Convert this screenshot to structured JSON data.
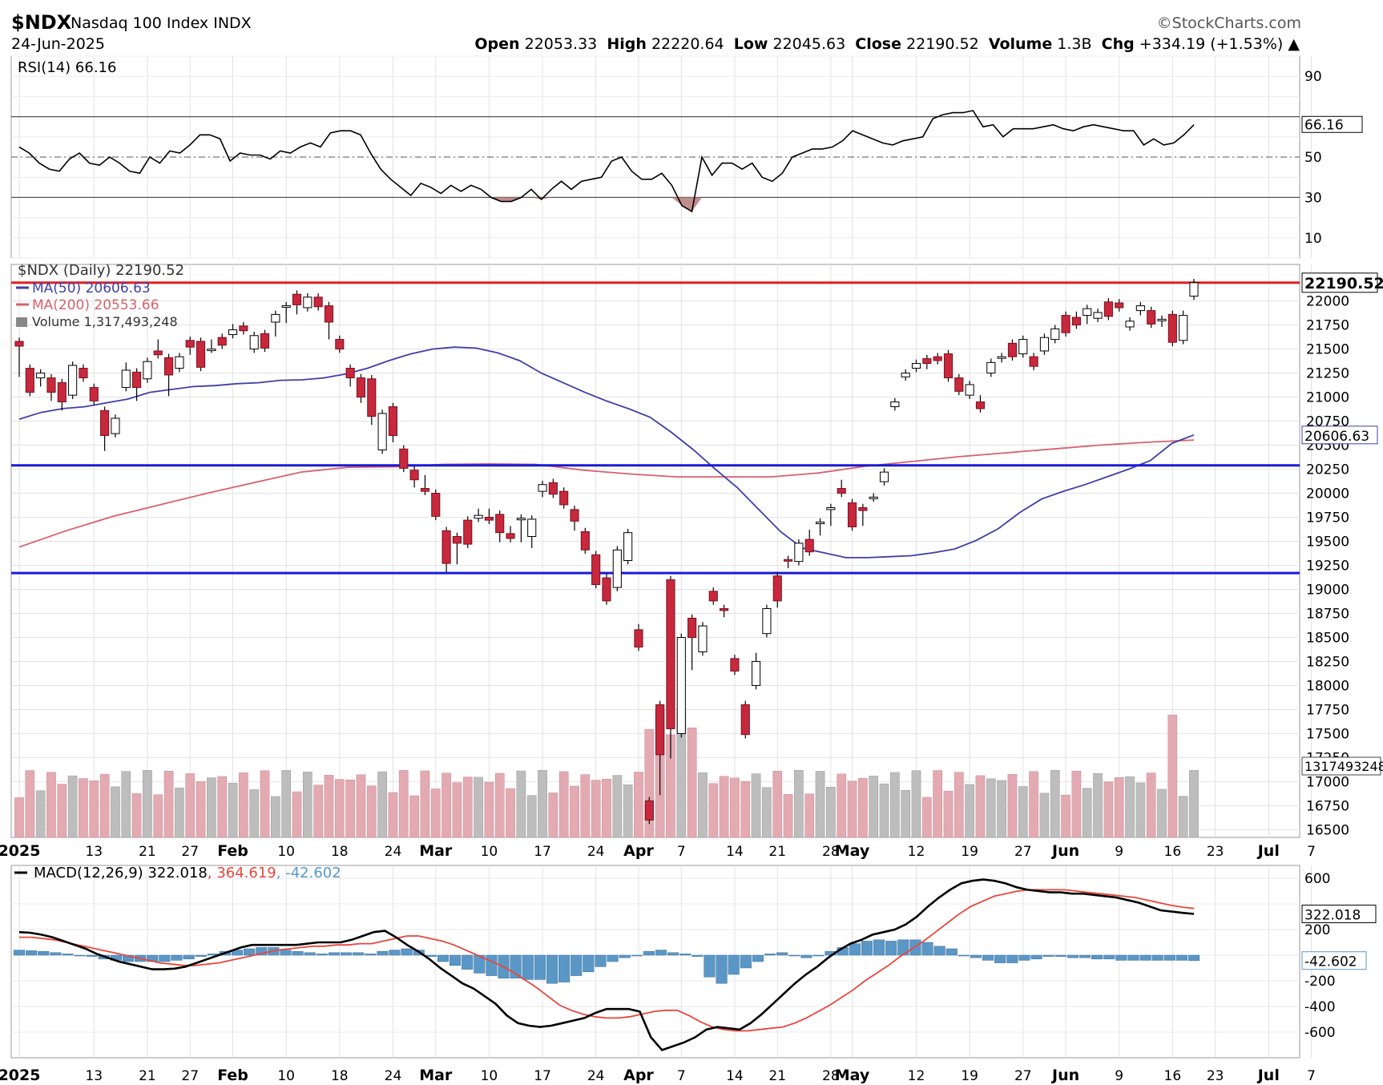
{
  "header": {
    "symbol": "$NDX",
    "name": "Nasdaq 100 Index",
    "exchange": "INDX",
    "date": "24-Jun-2025",
    "brand": "©StockCharts.com",
    "open_label": "Open",
    "open": "22053.33",
    "high_label": "High",
    "high": "22220.64",
    "low_label": "Low",
    "low": "22045.63",
    "close_label": "Close",
    "close": "22190.52",
    "volume_label": "Volume",
    "volume": "1.3B",
    "chg_label": "Chg",
    "chg": "+334.19 (+1.53%)"
  },
  "colors": {
    "up": "#ffffff",
    "down": "#c8283c",
    "ma50": "#3f3fa8",
    "ma200": "#d9616a",
    "rsi": "#000000",
    "macd": "#000000",
    "signal": "#e8463c",
    "hist": "#5a97c7",
    "hline_red": "#e02020",
    "hline_blue": "#1a1ad6",
    "vol_up": "#bdbdbd",
    "vol_down": "#e3aab2"
  },
  "chart_data": {
    "type": "candlestick",
    "x_ticks": [
      "2025",
      "13",
      "21",
      "27",
      "Feb",
      "10",
      "18",
      "24",
      "Mar",
      "10",
      "17",
      "24",
      "Apr",
      "7",
      "14",
      "21",
      "28",
      "May",
      "12",
      "19",
      "27",
      "Jun",
      "9",
      "16",
      "23",
      "Jul",
      "7"
    ],
    "price_panel": {
      "legend": [
        "$NDX (Daily) 22190.52",
        "MA(50) 20606.63",
        "MA(200) 20553.66",
        "Volume 1,317,493,248"
      ],
      "ylim": [
        16420,
        22380
      ],
      "y_ticks": [
        16500,
        16750,
        17000,
        17250,
        17500,
        17750,
        18000,
        18250,
        18500,
        18750,
        19000,
        19250,
        19500,
        19750,
        20000,
        20250,
        20500,
        20750,
        21000,
        21250,
        21500,
        21750,
        22000
      ],
      "last_price_label": "22190.52",
      "ma50_label": "20606.63",
      "volume_label": "1317493248",
      "horizontal_lines": [
        22190,
        20290,
        19170
      ],
      "candles": [
        [
          21580,
          21530,
          21250
        ],
        [
          21300,
          21050,
          21100
        ],
        [
          21200,
          21250,
          21150
        ],
        [
          21200,
          21050,
          21000
        ],
        [
          21150,
          20950,
          20900
        ],
        [
          21020,
          21330,
          21300
        ],
        [
          21300,
          21200,
          21270
        ],
        [
          21100,
          20960,
          20970
        ],
        [
          20860,
          20600,
          20480
        ],
        [
          20620,
          20780,
          20700
        ],
        [
          21100,
          21280,
          21320
        ],
        [
          21260,
          21100,
          21000
        ],
        [
          21190,
          21370,
          21350
        ],
        [
          21480,
          21440,
          21560
        ],
        [
          21410,
          21230,
          21050
        ],
        [
          21300,
          21420,
          21400
        ],
        [
          21590,
          21520,
          21480
        ],
        [
          21580,
          21310,
          21320
        ],
        [
          21500,
          21500,
          21560
        ],
        [
          21620,
          21540,
          21620
        ],
        [
          21650,
          21700,
          21720
        ],
        [
          21740,
          21690,
          21700
        ],
        [
          21500,
          21640,
          21520
        ],
        [
          21660,
          21510,
          21650
        ],
        [
          21780,
          21860,
          21670
        ],
        [
          21950,
          21950,
          21810
        ],
        [
          22070,
          21960,
          21900
        ],
        [
          21930,
          22040,
          21940
        ],
        [
          22040,
          21940,
          21980
        ],
        [
          21950,
          21780,
          21640
        ],
        [
          21600,
          21500,
          21580
        ],
        [
          21300,
          21200,
          21150
        ],
        [
          21200,
          21000,
          20980
        ],
        [
          21190,
          20800,
          20750
        ],
        [
          20450,
          20830,
          20830
        ],
        [
          20900,
          20600,
          20570
        ],
        [
          20460,
          20260,
          20280
        ],
        [
          20240,
          20140,
          20100
        ],
        [
          20050,
          20020,
          20150
        ],
        [
          20000,
          19760,
          19840
        ],
        [
          19610,
          19270,
          19220
        ],
        [
          19550,
          19480,
          19300
        ],
        [
          19720,
          19470,
          19510
        ],
        [
          19740,
          19770,
          19800
        ],
        [
          19750,
          19720,
          19800
        ],
        [
          19780,
          19590,
          19530
        ],
        [
          19580,
          19530,
          19620
        ],
        [
          19740,
          19740,
          19530
        ],
        [
          19550,
          19730,
          19470
        ],
        [
          20020,
          20090,
          20000
        ],
        [
          20110,
          19990,
          20100
        ],
        [
          20020,
          19880,
          19920
        ],
        [
          19830,
          19710,
          19650
        ],
        [
          19600,
          19410,
          19570
        ],
        [
          19360,
          19050,
          19080
        ],
        [
          19120,
          18880,
          19000
        ],
        [
          19020,
          19410,
          19300
        ],
        [
          19300,
          19590,
          19350
        ],
        [
          18580,
          18400,
          18600
        ],
        [
          16800,
          16600,
          16700
        ],
        [
          17800,
          17280,
          16900
        ],
        [
          19100,
          17550,
          17280
        ],
        [
          17500,
          18500,
          17800
        ],
        [
          18700,
          18500,
          18200
        ],
        [
          18350,
          18620,
          18500
        ],
        [
          18980,
          18880,
          18960
        ],
        [
          18800,
          18780,
          18750
        ],
        [
          18280,
          18150,
          18200
        ],
        [
          17800,
          17490,
          17600
        ],
        [
          18000,
          18250,
          18300
        ],
        [
          18540,
          18800,
          18600
        ],
        [
          19140,
          18880,
          18850
        ],
        [
          19310,
          19300,
          19260
        ],
        [
          19290,
          19480,
          19450
        ],
        [
          19520,
          19390,
          19580
        ],
        [
          19700,
          19700,
          19600
        ],
        [
          19830,
          19850,
          19700
        ],
        [
          20050,
          20000,
          20100
        ],
        [
          19900,
          19650,
          19800
        ],
        [
          19850,
          19820,
          19700
        ],
        [
          19960,
          19960,
          19950
        ],
        [
          20120,
          20220,
          20190
        ],
        [
          20900,
          20950,
          20950
        ],
        [
          21210,
          21250,
          21250
        ],
        [
          21300,
          21350,
          21300
        ],
        [
          21400,
          21350,
          21330
        ],
        [
          21420,
          21380,
          21400
        ],
        [
          21450,
          21200,
          21250
        ],
        [
          21200,
          21060,
          21060
        ],
        [
          21020,
          21130,
          21080
        ],
        [
          20950,
          20880,
          20980
        ],
        [
          21250,
          21360,
          21330
        ],
        [
          21420,
          21420,
          21400
        ],
        [
          21560,
          21420,
          21450
        ],
        [
          21450,
          21600,
          21550
        ],
        [
          21420,
          21320,
          21420
        ],
        [
          21480,
          21620,
          21560
        ],
        [
          21600,
          21710,
          21680
        ],
        [
          21850,
          21670,
          21770
        ],
        [
          21830,
          21750,
          21850
        ],
        [
          21850,
          21920,
          21800
        ],
        [
          21820,
          21880,
          21870
        ],
        [
          21990,
          21840,
          21960
        ],
        [
          21980,
          21930,
          21930
        ],
        [
          21730,
          21790,
          21750
        ],
        [
          21900,
          21950,
          21890
        ],
        [
          21900,
          21760,
          21780
        ],
        [
          21800,
          21810,
          21770
        ],
        [
          21860,
          21570,
          21660
        ],
        [
          21590,
          21850,
          21860
        ],
        [
          22050,
          22190,
          22190
        ]
      ],
      "ma50": [
        [
          20770,
          20840,
          20880,
          20900,
          20940,
          20980,
          21050,
          21080,
          21110,
          21120,
          21140,
          21150,
          21175,
          21180,
          21200,
          21240,
          21300,
          21380,
          21450,
          21500,
          21520,
          21510,
          21460,
          21380,
          21250,
          21150,
          21050,
          20960,
          20880,
          20790,
          20630,
          20450,
          20250,
          20060,
          19830,
          19600,
          19430,
          19380,
          19330,
          19330,
          19340,
          19350,
          19380,
          19420,
          19510,
          19630,
          19800,
          19940,
          20020,
          20090,
          20170,
          20250,
          20340,
          20520,
          20606
        ]
      ],
      "ma200": [
        [
          19440,
          19610,
          19760,
          19880,
          20000,
          20110,
          20220,
          20270,
          20275,
          20300,
          20305,
          20300,
          20240,
          20200,
          20170,
          20170,
          20170,
          20210,
          20280,
          20330,
          20380,
          20420,
          20460,
          20500,
          20530,
          20554
        ]
      ]
    },
    "rsi_panel": {
      "legend": "RSI(14) 66.16",
      "y_ticks": [
        10,
        30,
        50,
        90
      ],
      "ylim": [
        0,
        100
      ],
      "bands": [
        70,
        50,
        30
      ],
      "last_label": "66.16",
      "values": [
        55,
        52,
        47,
        44,
        43,
        49,
        52,
        47,
        46,
        50,
        47,
        43,
        42,
        50,
        47,
        53,
        52,
        56,
        61,
        61,
        59,
        48,
        52,
        51,
        51,
        49,
        53,
        52,
        55,
        57,
        55,
        62,
        63,
        63,
        61,
        52,
        44,
        39,
        35,
        31,
        37,
        35,
        32,
        36,
        33,
        36,
        34,
        30,
        28,
        28,
        30,
        34,
        29,
        34,
        38,
        34,
        38,
        39,
        40,
        48,
        50,
        43,
        39,
        39,
        42,
        36,
        26,
        23,
        50,
        41,
        47,
        47,
        44,
        47,
        40,
        38,
        42,
        50,
        52,
        54,
        54,
        55,
        58,
        63,
        61,
        59,
        57,
        56,
        58,
        59,
        60,
        69,
        71,
        72,
        72,
        73,
        65,
        66,
        60,
        64,
        64,
        64,
        65,
        66,
        64,
        63,
        65,
        66,
        65,
        64,
        63,
        63,
        56,
        59,
        56,
        57,
        61,
        66
      ]
    },
    "macd_panel": {
      "legend": {
        "label": "MACD(12,26,9)",
        "macd": "322.018",
        "signal": "364.619",
        "hist": "-42.602"
      },
      "y_ticks": [
        600,
        200,
        -200,
        -400,
        -600
      ],
      "ylim": [
        -800,
        700
      ],
      "macd_label": "322.018",
      "hist_label": "-42.602",
      "macd": [
        [
          180,
          175,
          160,
          140,
          110,
          80,
          50,
          10,
          -20,
          -50,
          -70,
          -90,
          -110,
          -110,
          -105,
          -90,
          -60,
          -30,
          0,
          30,
          60,
          80,
          80,
          80,
          80,
          80,
          90,
          100,
          100,
          100,
          120,
          150,
          180,
          190,
          140,
          80,
          30,
          -30,
          -100,
          -160,
          -220,
          -260,
          -320,
          -380,
          -470,
          -530,
          -550,
          -560,
          -550,
          -530,
          -510,
          -490,
          -450,
          -420,
          -420,
          -420,
          -440,
          -640,
          -740,
          -710,
          -680,
          -640,
          -580,
          -560,
          -570,
          -580,
          -530,
          -460,
          -380,
          -300,
          -220,
          -150,
          -90,
          -20,
          40,
          90,
          120,
          160,
          180,
          200,
          240,
          300,
          380,
          450,
          510,
          560,
          580,
          590,
          580,
          560,
          530,
          510,
          500,
          490,
          490,
          480,
          480,
          470,
          460,
          450,
          430,
          410,
          380,
          350,
          340,
          330,
          322
        ]
      ],
      "signal": [
        [
          140,
          140,
          130,
          120,
          100,
          80,
          60,
          40,
          20,
          0,
          -20,
          -40,
          -60,
          -70,
          -80,
          -80,
          -70,
          -60,
          -40,
          -20,
          0,
          20,
          40,
          50,
          60,
          70,
          70,
          80,
          80,
          90,
          90,
          110,
          130,
          150,
          150,
          130,
          110,
          80,
          40,
          0,
          -40,
          -80,
          -130,
          -190,
          -250,
          -320,
          -390,
          -430,
          -460,
          -480,
          -490,
          -490,
          -480,
          -460,
          -440,
          -430,
          -430,
          -470,
          -520,
          -560,
          -580,
          -590,
          -590,
          -580,
          -570,
          -560,
          -530,
          -490,
          -440,
          -390,
          -330,
          -270,
          -200,
          -140,
          -80,
          -10,
          50,
          110,
          180,
          250,
          320,
          380,
          420,
          460,
          480,
          500,
          510,
          510,
          510,
          510,
          500,
          490,
          480,
          470,
          460,
          450,
          430,
          410,
          390,
          375,
          364.619
        ]
      ],
      "histogram": [
        40,
        35,
        30,
        20,
        10,
        0,
        -10,
        -30,
        -40,
        -50,
        -50,
        -50,
        -50,
        -40,
        -30,
        -10,
        10,
        30,
        40,
        50,
        60,
        60,
        40,
        30,
        20,
        10,
        20,
        20,
        20,
        10,
        30,
        40,
        50,
        40,
        -10,
        -50,
        -80,
        -110,
        -140,
        -160,
        -180,
        -180,
        -190,
        -190,
        -220,
        -210,
        -160,
        -130,
        -90,
        -50,
        -20,
        0,
        30,
        40,
        20,
        10,
        -10,
        -170,
        -220,
        -150,
        -100,
        -50,
        10,
        20,
        0,
        -20,
        0,
        30,
        60,
        90,
        110,
        120,
        110,
        120,
        120,
        100,
        70,
        50,
        0,
        -20,
        -40,
        -60,
        -60,
        -40,
        -30,
        -10,
        -10,
        -20,
        -20,
        -30,
        -30,
        -40,
        -40,
        -40,
        -40,
        -40,
        -40,
        -42.602
      ]
    }
  }
}
